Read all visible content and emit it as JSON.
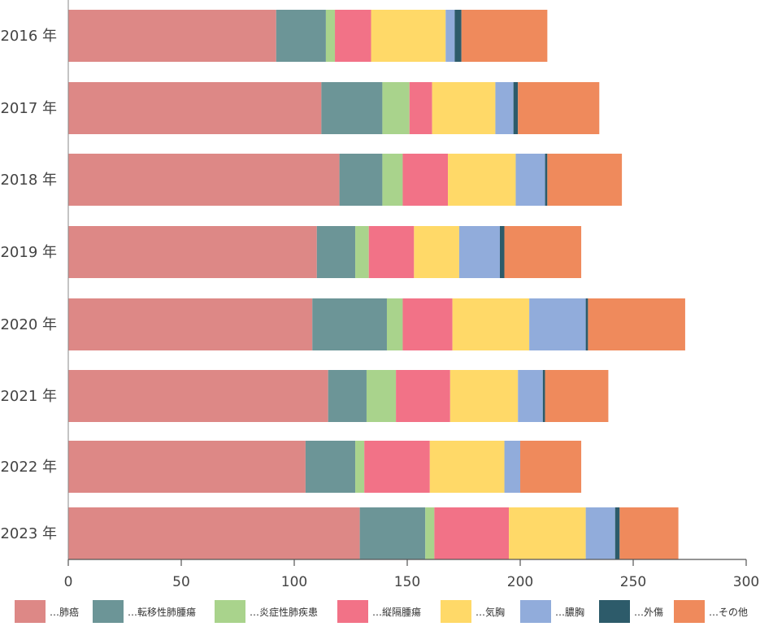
{
  "chart_data": {
    "type": "bar",
    "orientation": "horizontal",
    "stacked": true,
    "categories": [
      "2016 年",
      "2017 年",
      "2018 年",
      "2019 年",
      "2020 年",
      "2021 年",
      "2022 年",
      "2023 年"
    ],
    "series": [
      {
        "name": "…肺癌",
        "color": "#dd8886",
        "values": [
          92,
          112,
          120,
          110,
          108,
          115,
          105,
          129
        ]
      },
      {
        "name": "…転移性肺腫瘍",
        "color": "#6c9597",
        "values": [
          22,
          27,
          19,
          17,
          33,
          17,
          22,
          29
        ]
      },
      {
        "name": "…炎症性肺疾患",
        "color": "#a9d38c",
        "values": [
          4,
          12,
          9,
          6,
          7,
          13,
          4,
          4
        ]
      },
      {
        "name": "…縦隔腫瘍",
        "color": "#f27287",
        "values": [
          16,
          10,
          20,
          20,
          22,
          24,
          29,
          33
        ]
      },
      {
        "name": "…気胸",
        "color": "#ffd968",
        "values": [
          33,
          28,
          30,
          20,
          34,
          30,
          33,
          34
        ]
      },
      {
        "name": "…膿胸",
        "color": "#91acdb",
        "values": [
          4,
          8,
          13,
          18,
          25,
          11,
          7,
          13
        ]
      },
      {
        "name": "…外傷",
        "color": "#2d5b6a",
        "values": [
          3,
          2,
          1,
          2,
          1,
          1,
          0,
          2
        ]
      },
      {
        "name": "…その他",
        "color": "#ef8a5c",
        "values": [
          38,
          36,
          33,
          34,
          43,
          28,
          27,
          26
        ]
      }
    ],
    "xlim": [
      0,
      300
    ],
    "xticks": [
      0,
      50,
      100,
      150,
      200,
      250,
      300
    ],
    "xlabel": "",
    "ylabel": "",
    "title": "",
    "grid": false,
    "legend_position": "bottom"
  }
}
